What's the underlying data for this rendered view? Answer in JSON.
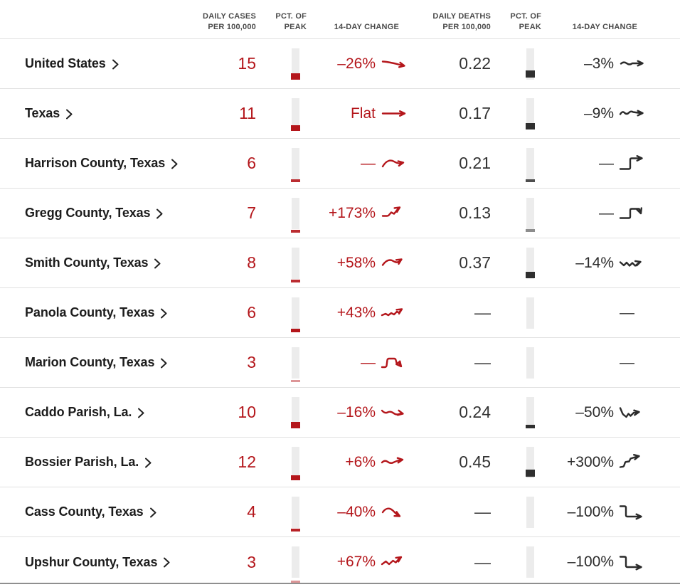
{
  "colors": {
    "accent_red": "#b4161b",
    "dark_text": "#2b2b2b",
    "name_text": "#1c1c1c",
    "bar_track": "#ececec",
    "separator": "#e1e1e1"
  },
  "table": {
    "headers": {
      "cases": "DAILY CASES\nPER 100,000",
      "cases_peak": "PCT. OF\nPEAK",
      "cases_change": "14-DAY CHANGE",
      "deaths": "DAILY DEATHS\nPER 100,000",
      "deaths_peak": "PCT. OF\nPEAK",
      "deaths_change": "14-DAY CHANGE"
    },
    "rows": [
      {
        "name": "United States",
        "cases": "15",
        "cases_peak": {
          "marker": "square",
          "h": 9,
          "b": 0,
          "o": 1
        },
        "cases_change": {
          "label": "–26%",
          "spark": "slight-down"
        },
        "deaths": "0.22",
        "deaths_peak": {
          "marker": "square",
          "h": 9.5,
          "b": 3,
          "o": 1
        },
        "deaths_change": {
          "label": "–3%",
          "spark": "flat-wiggle"
        }
      },
      {
        "name": "Texas",
        "cases": "11",
        "cases_peak": {
          "marker": "square",
          "h": 8,
          "b": -2,
          "o": 1
        },
        "cases_change": {
          "label": "Flat",
          "spark": "flat"
        },
        "deaths": "0.17",
        "deaths_peak": {
          "marker": "square",
          "h": 8.5,
          "b": 0,
          "o": 1
        },
        "deaths_change": {
          "label": "–9%",
          "spark": "wiggle"
        }
      },
      {
        "name": "Harrison County, Texas",
        "cases": "6",
        "cases_peak": {
          "marker": "dash",
          "h": 3.5,
          "b": -4,
          "o": 0.9
        },
        "cases_change": {
          "label": "—",
          "spark": "hump"
        },
        "deaths": "0.21",
        "deaths_peak": {
          "marker": "dash",
          "h": 3.5,
          "b": -4,
          "o": 0.85
        },
        "deaths_change": {
          "label": "—",
          "spark": "step-up"
        }
      },
      {
        "name": "Gregg County, Texas",
        "cases": "7",
        "cases_peak": {
          "marker": "dash",
          "h": 3.5,
          "b": -5,
          "o": 0.9
        },
        "cases_change": {
          "label": "+173%",
          "spark": "rise-jag"
        },
        "deaths": "0.13",
        "deaths_peak": {
          "marker": "dash",
          "h": 3.5,
          "b": -4,
          "o": 0.55
        },
        "deaths_change": {
          "label": "—",
          "spark": "step-bump"
        }
      },
      {
        "name": "Smith County, Texas",
        "cases": "8",
        "cases_peak": {
          "marker": "dash",
          "h": 3.5,
          "b": -5,
          "o": 0.9
        },
        "cases_change": {
          "label": "+58%",
          "spark": "hump-up"
        },
        "deaths": "0.37",
        "deaths_peak": {
          "marker": "square",
          "h": 8.5,
          "b": 1,
          "o": 1
        },
        "deaths_change": {
          "label": "–14%",
          "spark": "zigzag"
        }
      },
      {
        "name": "Panola County, Texas",
        "cases": "6",
        "cases_peak": {
          "marker": "dash",
          "h": 4.5,
          "b": -5,
          "o": 1
        },
        "cases_change": {
          "label": "+43%",
          "spark": "jag-up"
        },
        "deaths": "—",
        "deaths_peak": {
          "marker": "none"
        },
        "deaths_change": {
          "label": "—",
          "spark": null
        }
      },
      {
        "name": "Marion County, Texas",
        "cases": "3",
        "cases_peak": {
          "marker": "dash",
          "h": 3,
          "b": -5,
          "o": 0.45
        },
        "cases_change": {
          "label": "—",
          "spark": "plateau-down"
        },
        "deaths": "—",
        "deaths_peak": {
          "marker": "none"
        },
        "deaths_change": {
          "label": "—",
          "spark": null
        }
      },
      {
        "name": "Caddo Parish, La.",
        "cases": "10",
        "cases_peak": {
          "marker": "square",
          "h": 8.5,
          "b": 0,
          "o": 1
        },
        "cases_change": {
          "label": "–16%",
          "spark": "wiggle-down"
        },
        "deaths": "0.24",
        "deaths_peak": {
          "marker": "dash",
          "h": 4.5,
          "b": 0,
          "o": 1
        },
        "deaths_change": {
          "label": "–50%",
          "spark": "dip-up"
        }
      },
      {
        "name": "Bossier Parish, La.",
        "cases": "12",
        "cases_peak": {
          "marker": "square",
          "h": 7,
          "b": -3,
          "o": 1
        },
        "cases_change": {
          "label": "+6%",
          "spark": "wiggle-up"
        },
        "deaths": "0.45",
        "deaths_peak": {
          "marker": "square",
          "h": 9.5,
          "b": 2,
          "o": 1
        },
        "deaths_change": {
          "label": "+300%",
          "spark": "steps-up"
        }
      },
      {
        "name": "Cass County, Texas",
        "cases": "4",
        "cases_peak": {
          "marker": "dash",
          "h": 4,
          "b": -5,
          "o": 0.95
        },
        "cases_change": {
          "label": "–40%",
          "spark": "hump-down"
        },
        "deaths": "—",
        "deaths_peak": {
          "marker": "none"
        },
        "deaths_change": {
          "label": "–100%",
          "spark": "drop-step"
        }
      },
      {
        "name": "Upshur County, Texas",
        "cases": "3",
        "cases_peak": {
          "marker": "dash",
          "h": 3,
          "b": -7,
          "o": 0.45
        },
        "cases_change": {
          "label": "+67%",
          "spark": "zig-up"
        },
        "deaths": "—",
        "deaths_peak": {
          "marker": "none"
        },
        "deaths_change": {
          "label": "–100%",
          "spark": "drop-step"
        }
      }
    ]
  }
}
